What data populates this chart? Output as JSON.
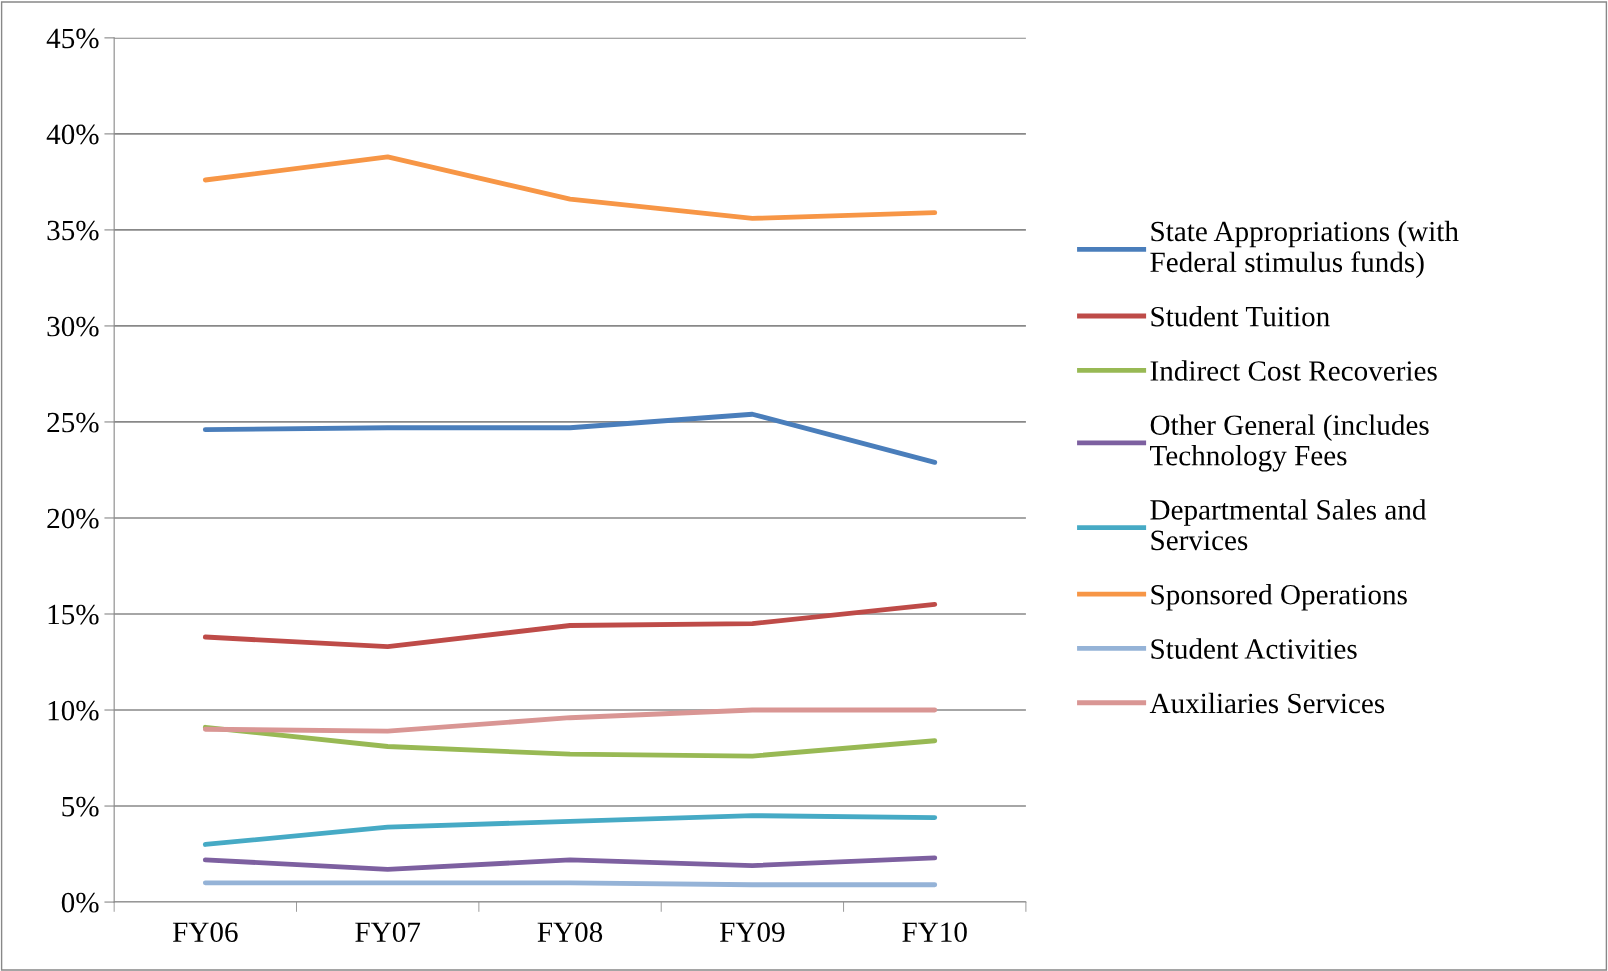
{
  "chart_data": {
    "type": "line",
    "categories": [
      "FY06",
      "FY07",
      "FY08",
      "FY09",
      "FY10"
    ],
    "series": [
      {
        "name": "State Appropriations (with Federal stimulus funds)",
        "color": "#4a7ebb",
        "values": [
          24.6,
          24.7,
          24.7,
          25.4,
          22.9
        ]
      },
      {
        "name": "Student Tuition",
        "color": "#be4b48",
        "values": [
          13.8,
          13.3,
          14.4,
          14.5,
          15.5
        ]
      },
      {
        "name": "Indirect Cost Recoveries",
        "color": "#98b954",
        "values": [
          9.1,
          8.1,
          7.7,
          7.6,
          8.4
        ]
      },
      {
        "name": "Other General (includes Technology Fees",
        "color": "#7d60a0",
        "values": [
          2.2,
          1.7,
          2.2,
          1.9,
          2.3
        ]
      },
      {
        "name": "Departmental Sales and Services",
        "color": "#46aac5",
        "values": [
          3.0,
          3.9,
          4.2,
          4.5,
          4.4
        ]
      },
      {
        "name": "Sponsored Operations",
        "color": "#f79646",
        "values": [
          37.6,
          38.8,
          36.6,
          35.6,
          35.9
        ]
      },
      {
        "name": "Student Activities",
        "color": "#95b3d7",
        "values": [
          1.0,
          1.0,
          1.0,
          0.9,
          0.9
        ]
      },
      {
        "name": "Auxiliaries Services",
        "color": "#d99694",
        "values": [
          9.0,
          8.9,
          9.6,
          10.0,
          10.0
        ]
      }
    ],
    "ylim": [
      0,
      45
    ],
    "yticks": [
      {
        "value": 0,
        "label": "0%"
      },
      {
        "value": 5,
        "label": "5%"
      },
      {
        "value": 10,
        "label": "10%"
      },
      {
        "value": 15,
        "label": "15%"
      },
      {
        "value": 20,
        "label": "20%"
      },
      {
        "value": 25,
        "label": "25%"
      },
      {
        "value": 30,
        "label": "30%"
      },
      {
        "value": 35,
        "label": "35%"
      },
      {
        "value": 40,
        "label": "40%"
      },
      {
        "value": 45,
        "label": "45%"
      }
    ],
    "grid": "y",
    "legend": "right",
    "marker": "none",
    "line_style": "solid"
  }
}
